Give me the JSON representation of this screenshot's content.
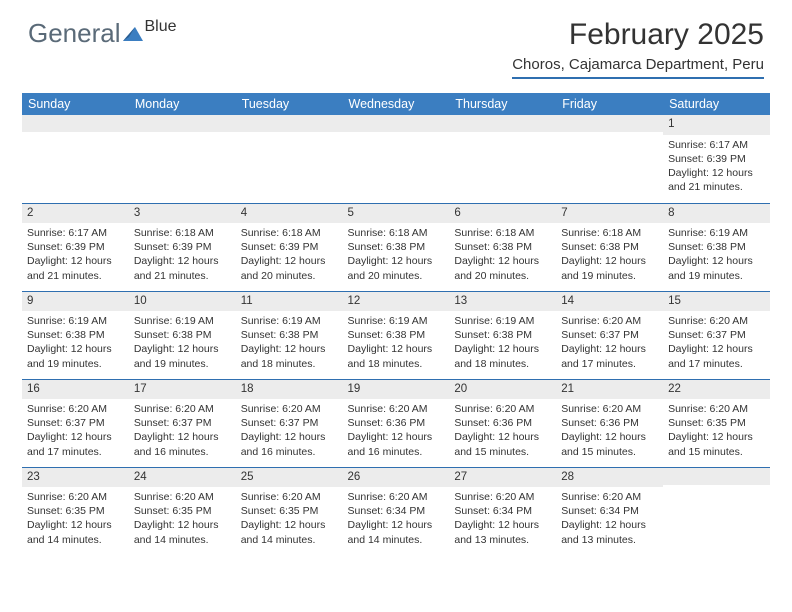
{
  "brand": {
    "text1": "General",
    "text2": "Blue",
    "color1": "#5a6a78",
    "color2": "#3b7ec1"
  },
  "title": "February 2025",
  "location": "Choros, Cajamarca Department, Peru",
  "colors": {
    "header_bg": "#3b7ec1",
    "header_text": "#ffffff",
    "daynum_bg": "#ececec",
    "rule": "#2f6fb0",
    "body_text": "#333333",
    "page_bg": "#ffffff"
  },
  "fonts": {
    "title_size": 30,
    "location_size": 15,
    "dayhead_size": 12.5,
    "cell_size": 10.5
  },
  "day_headers": [
    "Sunday",
    "Monday",
    "Tuesday",
    "Wednesday",
    "Thursday",
    "Friday",
    "Saturday"
  ],
  "weeks": [
    [
      null,
      null,
      null,
      null,
      null,
      null,
      {
        "n": "1",
        "sr": "6:17 AM",
        "ss": "6:39 PM",
        "dl": "12 hours and 21 minutes."
      }
    ],
    [
      {
        "n": "2",
        "sr": "6:17 AM",
        "ss": "6:39 PM",
        "dl": "12 hours and 21 minutes."
      },
      {
        "n": "3",
        "sr": "6:18 AM",
        "ss": "6:39 PM",
        "dl": "12 hours and 21 minutes."
      },
      {
        "n": "4",
        "sr": "6:18 AM",
        "ss": "6:39 PM",
        "dl": "12 hours and 20 minutes."
      },
      {
        "n": "5",
        "sr": "6:18 AM",
        "ss": "6:38 PM",
        "dl": "12 hours and 20 minutes."
      },
      {
        "n": "6",
        "sr": "6:18 AM",
        "ss": "6:38 PM",
        "dl": "12 hours and 20 minutes."
      },
      {
        "n": "7",
        "sr": "6:18 AM",
        "ss": "6:38 PM",
        "dl": "12 hours and 19 minutes."
      },
      {
        "n": "8",
        "sr": "6:19 AM",
        "ss": "6:38 PM",
        "dl": "12 hours and 19 minutes."
      }
    ],
    [
      {
        "n": "9",
        "sr": "6:19 AM",
        "ss": "6:38 PM",
        "dl": "12 hours and 19 minutes."
      },
      {
        "n": "10",
        "sr": "6:19 AM",
        "ss": "6:38 PM",
        "dl": "12 hours and 19 minutes."
      },
      {
        "n": "11",
        "sr": "6:19 AM",
        "ss": "6:38 PM",
        "dl": "12 hours and 18 minutes."
      },
      {
        "n": "12",
        "sr": "6:19 AM",
        "ss": "6:38 PM",
        "dl": "12 hours and 18 minutes."
      },
      {
        "n": "13",
        "sr": "6:19 AM",
        "ss": "6:38 PM",
        "dl": "12 hours and 18 minutes."
      },
      {
        "n": "14",
        "sr": "6:20 AM",
        "ss": "6:37 PM",
        "dl": "12 hours and 17 minutes."
      },
      {
        "n": "15",
        "sr": "6:20 AM",
        "ss": "6:37 PM",
        "dl": "12 hours and 17 minutes."
      }
    ],
    [
      {
        "n": "16",
        "sr": "6:20 AM",
        "ss": "6:37 PM",
        "dl": "12 hours and 17 minutes."
      },
      {
        "n": "17",
        "sr": "6:20 AM",
        "ss": "6:37 PM",
        "dl": "12 hours and 16 minutes."
      },
      {
        "n": "18",
        "sr": "6:20 AM",
        "ss": "6:37 PM",
        "dl": "12 hours and 16 minutes."
      },
      {
        "n": "19",
        "sr": "6:20 AM",
        "ss": "6:36 PM",
        "dl": "12 hours and 16 minutes."
      },
      {
        "n": "20",
        "sr": "6:20 AM",
        "ss": "6:36 PM",
        "dl": "12 hours and 15 minutes."
      },
      {
        "n": "21",
        "sr": "6:20 AM",
        "ss": "6:36 PM",
        "dl": "12 hours and 15 minutes."
      },
      {
        "n": "22",
        "sr": "6:20 AM",
        "ss": "6:35 PM",
        "dl": "12 hours and 15 minutes."
      }
    ],
    [
      {
        "n": "23",
        "sr": "6:20 AM",
        "ss": "6:35 PM",
        "dl": "12 hours and 14 minutes."
      },
      {
        "n": "24",
        "sr": "6:20 AM",
        "ss": "6:35 PM",
        "dl": "12 hours and 14 minutes."
      },
      {
        "n": "25",
        "sr": "6:20 AM",
        "ss": "6:35 PM",
        "dl": "12 hours and 14 minutes."
      },
      {
        "n": "26",
        "sr": "6:20 AM",
        "ss": "6:34 PM",
        "dl": "12 hours and 14 minutes."
      },
      {
        "n": "27",
        "sr": "6:20 AM",
        "ss": "6:34 PM",
        "dl": "12 hours and 13 minutes."
      },
      {
        "n": "28",
        "sr": "6:20 AM",
        "ss": "6:34 PM",
        "dl": "12 hours and 13 minutes."
      },
      null
    ]
  ],
  "labels": {
    "sunrise": "Sunrise:",
    "sunset": "Sunset:",
    "daylight": "Daylight:"
  }
}
